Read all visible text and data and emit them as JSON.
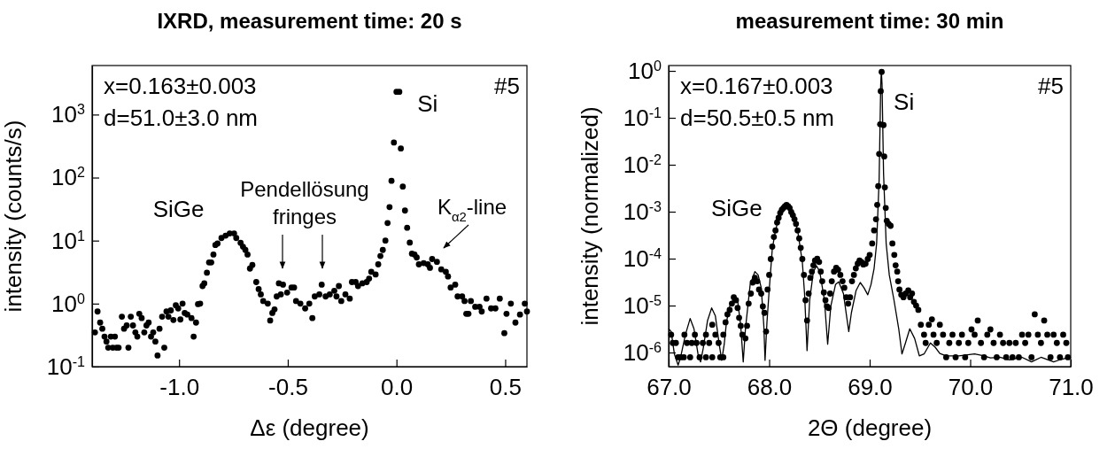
{
  "chart_data": [
    {
      "type": "scatter",
      "title": "IXRD, measurement time: 20 s",
      "xlabel": "Δε (degree)",
      "ylabel": "intensity (counts/s)",
      "log": "y",
      "marker": "circle",
      "xlim": [
        -1.4,
        0.6
      ],
      "ylim": [
        0.1,
        6000
      ],
      "xticks": [
        {
          "value": -1,
          "label": "-1.0"
        },
        {
          "value": -0.5,
          "label": "-0.5"
        },
        {
          "value": 0,
          "label": "0.0"
        },
        {
          "value": 0.5,
          "label": "0.5"
        }
      ],
      "yticks": [
        {
          "value": 0.1,
          "label": "10$^{-1}$"
        },
        {
          "value": 1,
          "label": "10$^{0}$"
        },
        {
          "value": 10,
          "label": "10$^{1}$"
        },
        {
          "value": 100,
          "label": "10$^{2}$"
        },
        {
          "value": 1000,
          "label": "10$^{3}$"
        }
      ],
      "annotations": [
        "x=0.163±0.003",
        "d=51.0±3.0 nm",
        "#5",
        {
          "text": "Si",
          "x": 0.0,
          "y": 2300
        },
        {
          "text": "SiGe",
          "x": -0.77,
          "y": 13
        },
        "Pendellösung fringes",
        "K$_{α2}$-line"
      ],
      "series": [
        {
          "color": "#000000",
          "x": [
            -1.387,
            -1.375,
            -1.363,
            -1.353,
            -1.343,
            -1.334,
            -1.326,
            -1.314,
            -1.305,
            -1.295,
            -1.288,
            -1.278,
            -1.263,
            -1.253,
            -1.241,
            -1.233,
            -1.222,
            -1.212,
            -1.201,
            -1.192,
            -1.183,
            -1.172,
            -1.16,
            -1.15,
            -1.14,
            -1.129,
            -1.119,
            -1.109,
            -1.099,
            -1.09,
            -1.078,
            -1.068,
            -1.058,
            -1.049,
            -1.038,
            -1.026,
            -1.015,
            -1.004,
            -0.994,
            -0.984,
            -0.974,
            -0.962,
            -0.943,
            -0.933,
            -0.922,
            -0.913,
            -0.903,
            -0.892,
            -0.884,
            -0.872,
            -0.862,
            -0.852,
            -0.842,
            -0.833,
            -0.823,
            -0.805,
            -0.786,
            -0.767,
            -0.747,
            -0.737,
            -0.717,
            -0.706,
            -0.695,
            -0.685,
            -0.674,
            -0.663,
            -0.645,
            -0.634,
            -0.624,
            -0.613,
            -0.592,
            -0.581,
            -0.571,
            -0.561,
            -0.551,
            -0.541,
            -0.532,
            -0.522,
            -0.503,
            -0.483,
            -0.471,
            -0.462,
            -0.442,
            -0.42,
            -0.401,
            -0.387,
            -0.376,
            -0.355,
            -0.344,
            -0.326,
            -0.307,
            -0.286,
            -0.276,
            -0.265,
            -0.254,
            -0.235,
            -0.215,
            -0.205,
            -0.188,
            -0.177,
            -0.157,
            -0.137,
            -0.126,
            -0.116,
            -0.096,
            -0.084,
            -0.074,
            -0.063,
            -0.051,
            -0.041,
            -0.032,
            -0.023,
            -0.012,
            0.0,
            0.013,
            0.02,
            0.029,
            0.039,
            0.049,
            0.061,
            0.071,
            0.083,
            0.093,
            0.103,
            0.125,
            0.144,
            0.154,
            0.164,
            0.186,
            0.206,
            0.227,
            0.237,
            0.249,
            0.27,
            0.281,
            0.302,
            0.313,
            0.321,
            0.331,
            0.342,
            0.362,
            0.382,
            0.392,
            0.414,
            0.435,
            0.455,
            0.475,
            0.496,
            0.506,
            0.526,
            0.547,
            0.568,
            0.59,
            0.6
          ],
          "values": [
            0.35,
            0.75,
            0.5,
            0.4,
            0.3,
            0.25,
            0.2,
            0.3,
            0.2,
            0.3,
            0.2,
            0.2,
            0.62,
            0.4,
            0.45,
            0.2,
            0.62,
            0.45,
            0.35,
            0.3,
            0.69,
            0.59,
            0.35,
            0.45,
            0.5,
            0.3,
            0.35,
            0.25,
            0.15,
            0.4,
            0.62,
            0.2,
            0.75,
            0.62,
            0.78,
            0.55,
            0.94,
            0.84,
            0.56,
            1.0,
            0.71,
            0.67,
            0.59,
            0.3,
            0.5,
            0.98,
            1.0,
            1.9,
            2.1,
            3.1,
            4.5,
            4.5,
            6.0,
            8.5,
            9.0,
            11,
            12,
            13,
            13,
            11,
            9.2,
            8.0,
            7.1,
            6.0,
            3.6,
            4.1,
            2.2,
            1.7,
            1.4,
            1.1,
            1.0,
            0.54,
            0.71,
            0.81,
            1.3,
            2.1,
            1.4,
            2.0,
            1.5,
            1.8,
            1.8,
            1.1,
            1.0,
            0.84,
            1.0,
            0.59,
            1.3,
            1.4,
            2.0,
            1.3,
            1.4,
            1.6,
            1.3,
            1.9,
            1.1,
            1.4,
            1.2,
            2.2,
            2.2,
            1.9,
            2.1,
            2.2,
            2.5,
            3.2,
            2.9,
            4.2,
            5.7,
            7.1,
            10,
            19,
            34,
            89,
            360,
            2300,
            2300,
            290,
            72,
            30,
            16,
            9.3,
            6.2,
            6.0,
            5.4,
            4.2,
            4.4,
            4.2,
            3.7,
            5.1,
            4.6,
            3.5,
            3.2,
            2.7,
            1.8,
            2.0,
            1.3,
            1.3,
            1.1,
            0.69,
            0.69,
            1.1,
            0.89,
            0.89,
            0.75,
            1.2,
            0.84,
            0.84,
            1.2,
            0.34,
            0.69,
            1.0,
            0.5,
            0.67,
            1.0,
            0.75
          ]
        }
      ]
    },
    {
      "type": "scatter",
      "title": "measurement time: 30 min",
      "xlabel": "2Θ (degree)",
      "ylabel": "intensity (normalized)",
      "log": "y",
      "xlim": [
        67,
        71
      ],
      "ylim": [
        5e-07,
        1.3
      ],
      "xticks": [
        {
          "value": 67,
          "label": "67.0"
        },
        {
          "value": 68,
          "label": "68.0"
        },
        {
          "value": 69,
          "label": "69.0"
        },
        {
          "value": 70,
          "label": "70.0"
        },
        {
          "value": 71,
          "label": "71.0"
        }
      ],
      "yticks": [
        {
          "value": 1e-06,
          "label": "10$^{-6}$"
        },
        {
          "value": 1e-05,
          "label": "10$^{-5}$"
        },
        {
          "value": 0.0001,
          "label": "10$^{-4}$"
        },
        {
          "value": 0.001,
          "label": "10$^{-3}$"
        },
        {
          "value": 0.01,
          "label": "10$^{-2}$"
        },
        {
          "value": 0.1,
          "label": "10$^{-1}$"
        },
        {
          "value": 1,
          "label": "10$^{0}$"
        }
      ],
      "annotations": [
        "x=0.167±0.003",
        "d=50.5±0.5 nm",
        "#5",
        {
          "text": "Si",
          "x": 69.12,
          "y": 0.95
        },
        {
          "text": "SiGe",
          "x": 68.17,
          "y": 0.0013
        }
      ],
      "series": [
        {
          "type": "line",
          "color": "#000000",
          "marker": "none",
          "x": [
            67.0,
            67.025,
            67.057,
            67.094,
            67.119,
            67.167,
            67.214,
            67.252,
            67.292,
            67.318,
            67.346,
            67.387,
            67.428,
            67.465,
            67.503,
            67.528,
            67.553,
            67.575,
            67.607,
            67.654,
            67.686,
            67.717,
            67.742,
            67.764,
            67.811,
            67.858,
            67.89,
            67.921,
            67.947,
            67.959,
            67.978,
            68.0,
            68.031,
            68.063,
            68.11,
            68.173,
            68.236,
            68.283,
            68.33,
            68.352,
            68.377,
            68.403,
            68.44,
            68.472,
            68.503,
            68.55,
            68.582,
            68.613,
            68.66,
            68.692,
            68.739,
            68.77,
            68.792,
            68.818,
            68.865,
            68.906,
            68.943,
            68.981,
            69.013,
            69.044,
            69.069,
            69.094,
            69.11,
            69.116,
            69.123,
            69.138,
            69.164,
            69.195,
            69.242,
            69.289,
            69.321,
            69.352,
            69.399,
            69.447,
            69.494,
            69.541,
            69.604,
            69.651,
            69.698,
            69.761,
            69.887,
            70.044,
            70.138,
            70.201,
            70.296,
            70.39,
            70.516,
            70.61,
            70.704,
            70.83,
            70.893,
            70.987
          ],
          "values": [
            3.2e-06,
            2.8e-06,
            9.3e-07,
            5.4e-07,
            7.9e-07,
            2.4e-06,
            5.3e-06,
            3.2e-06,
            9.3e-07,
            6.3e-07,
            1.3e-06,
            4.8e-06,
            8.9e-06,
            6e-06,
            1.5e-06,
            6.8e-07,
            1.5e-06,
            4.4e-06,
            9.6e-06,
            1.5e-05,
            1.3e-05,
            3.7e-06,
            6.3e-07,
            3.2e-06,
            2.8e-05,
            5.3e-05,
            4.5e-05,
            2.4e-05,
            3.7e-06,
            6.8e-07,
            4.4e-06,
            2.1e-05,
            0.00016,
            0.0004,
            0.00094,
            0.0014,
            0.00094,
            0.0004,
            8.5e-05,
            1.8e-05,
            1.1e-06,
            1.3e-05,
            5.3e-05,
            7e-05,
            5.3e-05,
            1.3e-05,
            1.5e-06,
            9.6e-06,
            2.8e-05,
            3.2e-05,
            1.8e-05,
            6e-06,
            2.8e-06,
            7e-06,
            2.1e-05,
            3.1e-05,
            2.4e-05,
            1.7e-05,
            2.8e-05,
            6.2e-05,
            0.00021,
            0.0048,
            0.51,
            1.0,
            0.51,
            0.0066,
            0.00021,
            4.5e-05,
            1.3e-05,
            3.2e-06,
            9.3e-07,
            1.5e-06,
            3.2e-06,
            2e-06,
            8.5e-07,
            9.3e-07,
            1.6e-06,
            1.3e-06,
            9.5e-07,
            8.5e-07,
            8.5e-07,
            9.3e-07,
            8.5e-07,
            7.7e-07,
            7.9e-07,
            7e-07,
            7.9e-07,
            6.3e-07,
            7.9e-07,
            6.3e-07,
            7e-07,
            7.9e-07
          ]
        },
        {
          "color": "#000000",
          "marker": "circle",
          "x": [
            67.025,
            67.041,
            67.072,
            67.094,
            67.119,
            67.151,
            67.157,
            67.182,
            67.214,
            67.23,
            67.261,
            67.277,
            67.308,
            67.34,
            67.371,
            67.371,
            67.403,
            67.434,
            67.434,
            67.465,
            67.497,
            67.513,
            67.544,
            67.544,
            67.566,
            67.585,
            67.607,
            67.629,
            67.648,
            67.67,
            67.686,
            67.701,
            67.717,
            67.733,
            67.764,
            67.78,
            67.796,
            67.818,
            67.836,
            67.858,
            67.881,
            67.899,
            67.921,
            67.937,
            67.953,
            67.969,
            67.984,
            68.0,
            68.016,
            68.031,
            68.047,
            68.063,
            68.079,
            68.094,
            68.11,
            68.126,
            68.142,
            68.157,
            68.173,
            68.189,
            68.204,
            68.22,
            68.236,
            68.252,
            68.267,
            68.283,
            68.299,
            68.314,
            68.33,
            68.346,
            68.362,
            68.377,
            68.393,
            68.409,
            68.425,
            68.44,
            68.456,
            68.478,
            68.497,
            68.513,
            68.528,
            68.544,
            68.56,
            68.575,
            68.591,
            68.607,
            68.623,
            68.645,
            68.667,
            68.686,
            68.708,
            68.73,
            68.748,
            68.767,
            68.786,
            68.805,
            68.824,
            68.843,
            68.862,
            68.881,
            68.899,
            68.918,
            68.937,
            68.959,
            68.981,
            69.0,
            69.025,
            69.044,
            69.063,
            69.075,
            69.085,
            69.094,
            69.104,
            69.11,
            69.119,
            69.138,
            69.145,
            69.151,
            69.16,
            69.17,
            69.189,
            69.208,
            69.226,
            69.245,
            69.258,
            69.274,
            69.283,
            69.296,
            69.314,
            69.336,
            69.358,
            69.384,
            69.403,
            69.421,
            69.44,
            69.462,
            69.484,
            69.509,
            69.541,
            69.557,
            69.588,
            69.619,
            69.635,
            69.667,
            69.698,
            69.73,
            69.761,
            69.792,
            69.824,
            69.855,
            69.887,
            69.918,
            69.95,
            69.981,
            70.013,
            70.044,
            70.075,
            70.107,
            70.138,
            70.17,
            70.201,
            70.233,
            70.264,
            70.296,
            70.327,
            70.358,
            70.39,
            70.421,
            70.453,
            70.484,
            70.516,
            70.547,
            70.579,
            70.61,
            70.642,
            70.673,
            70.704,
            70.736,
            70.767,
            70.799,
            70.83,
            70.862,
            70.893,
            70.925,
            70.956,
            70.972
          ],
          "values": [
            2.4e-06,
            1.6e-06,
            1.6e-06,
            7.9e-07,
            7.9e-07,
            7.9e-07,
            2.4e-06,
            1.6e-06,
            7.9e-07,
            1.6e-06,
            2.4e-06,
            1.6e-06,
            7.9e-07,
            1.6e-06,
            2.4e-06,
            7.9e-07,
            1.6e-06,
            3.9e-06,
            7.9e-07,
            2.4e-06,
            1.6e-06,
            7.9e-07,
            2.4e-06,
            7.9e-07,
            4.4e-06,
            6.5e-06,
            8.1e-06,
            1.1e-05,
            1.5e-05,
            1.3e-05,
            8.9e-06,
            5.5e-06,
            3.7e-06,
            2.4e-06,
            2e-06,
            3.7e-06,
            1.1e-05,
            1.8e-05,
            3.1e-05,
            3.9e-05,
            3.3e-05,
            2.2e-05,
            1.8e-05,
            9.6e-06,
            7e-06,
            2.8e-06,
            2.2e-05,
            4.5e-05,
            9.8e-05,
            0.00018,
            0.00029,
            0.0004,
            0.00059,
            0.00074,
            0.00094,
            0.0011,
            0.0012,
            0.0013,
            0.0014,
            0.0013,
            0.0012,
            0.00098,
            0.00084,
            0.00069,
            0.00055,
            0.0004,
            0.00027,
            0.00017,
            9.8e-05,
            4.5e-05,
            1.3e-05,
            4.8e-06,
            1.8e-05,
            3.9e-05,
            5.3e-05,
            7.2e-05,
            9.1e-05,
            0.0001,
            8.5e-05,
            5.3e-05,
            3.3e-05,
            1.9e-05,
            1.3e-05,
            9.6e-06,
            8.9e-06,
            1.8e-05,
            3.3e-05,
            5.3e-05,
            6.4e-05,
            5.8e-05,
            4.5e-05,
            3.3e-05,
            2.4e-05,
            1.5e-05,
            1.1e-05,
            1.5e-05,
            3.3e-05,
            4.5e-05,
            6.2e-05,
            7.8e-05,
            9.1e-05,
            8.5e-05,
            7.5e-05,
            7.8e-05,
            9.8e-05,
            0.00012,
            0.00021,
            0.0004,
            0.00069,
            0.0014,
            0.0035,
            0.017,
            0.073,
            0.37,
            0.95,
            0.07,
            0.015,
            0.0033,
            0.0012,
            0.00064,
            0.00055,
            0.0005,
            0.00021,
            0.00012,
            7.2e-05,
            5.3e-05,
            3.3e-05,
            2.2e-05,
            1.7e-05,
            1.5e-05,
            1.8e-05,
            2.1e-05,
            1.5e-05,
            1.8e-05,
            1.2e-05,
            1e-05,
            8.1e-06,
            3.9e-06,
            2.4e-06,
            1.6e-06,
            3.9e-06,
            5.1e-06,
            2.4e-06,
            1.6e-06,
            3.9e-06,
            2.4e-06,
            7.9e-07,
            1.6e-06,
            2.4e-06,
            7.9e-07,
            1.6e-06,
            2.4e-06,
            7.9e-07,
            1.6e-06,
            3.1e-06,
            2.4e-06,
            4.8e-06,
            1.6e-06,
            7.9e-07,
            2.4e-06,
            3.1e-06,
            1.6e-06,
            7.9e-07,
            2.4e-06,
            1.6e-06,
            7.9e-07,
            1.6e-06,
            7.9e-07,
            1.6e-06,
            7.9e-07,
            2.4e-06,
            1.6e-06,
            2.4e-06,
            7.9e-07,
            6.5e-06,
            2.4e-06,
            1.6e-06,
            4.8e-06,
            2.4e-06,
            7.9e-07,
            2.4e-06,
            1.6e-06,
            7.9e-07,
            2.4e-06,
            1.6e-06,
            7.9e-07
          ]
        }
      ]
    }
  ]
}
